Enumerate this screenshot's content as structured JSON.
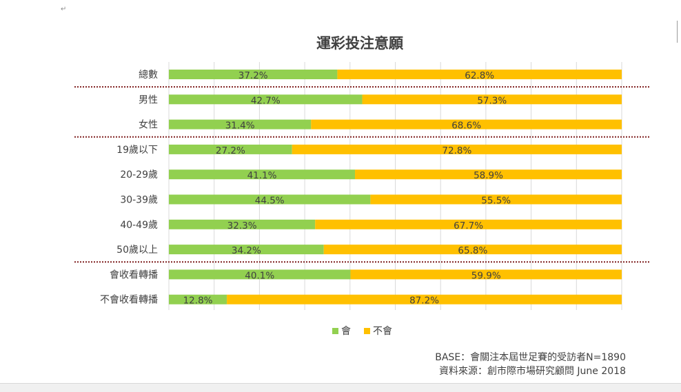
{
  "chart_data": {
    "type": "bar",
    "orientation": "horizontal",
    "stacked": true,
    "stack_mode": "percent",
    "title": "運彩投注意願",
    "categories": [
      "總數",
      "男性",
      "女性",
      "19歲以下",
      "20-29歲",
      "30-39歲",
      "40-49歲",
      "50歲以上",
      "會收看轉播",
      "不會收看轉播"
    ],
    "series": [
      {
        "name": "會",
        "color": "#92d050",
        "values": [
          37.2,
          42.7,
          31.4,
          27.2,
          41.1,
          44.5,
          32.3,
          34.2,
          40.1,
          12.8
        ],
        "labels": [
          "37.2%",
          "42.7%",
          "31.4%",
          "27.2%",
          "41.1%",
          "44.5%",
          "32.3%",
          "34.2%",
          "40.1%",
          "12.8%"
        ]
      },
      {
        "name": "不會",
        "color": "#ffc000",
        "values": [
          62.8,
          57.3,
          68.6,
          72.8,
          58.9,
          55.5,
          67.7,
          65.8,
          59.9,
          87.2
        ],
        "labels": [
          "62.8%",
          "57.3%",
          "68.6%",
          "72.8%",
          "58.9%",
          "55.5%",
          "67.7%",
          "65.8%",
          "59.9%",
          "87.2%"
        ]
      }
    ],
    "xlim": [
      0,
      100
    ],
    "gridlines": true,
    "group_separators_after": [
      "總數",
      "女性",
      "50歲以上"
    ],
    "separator_color": "#7f1f1f",
    "legend_position": "bottom-center"
  },
  "source": {
    "base": "BASE：會關注本屆世足賽的受訪者N=1890",
    "line": "資料來源：創市際市場研究顧問 June 2018"
  },
  "decor": {
    "return_mark": "↵"
  }
}
